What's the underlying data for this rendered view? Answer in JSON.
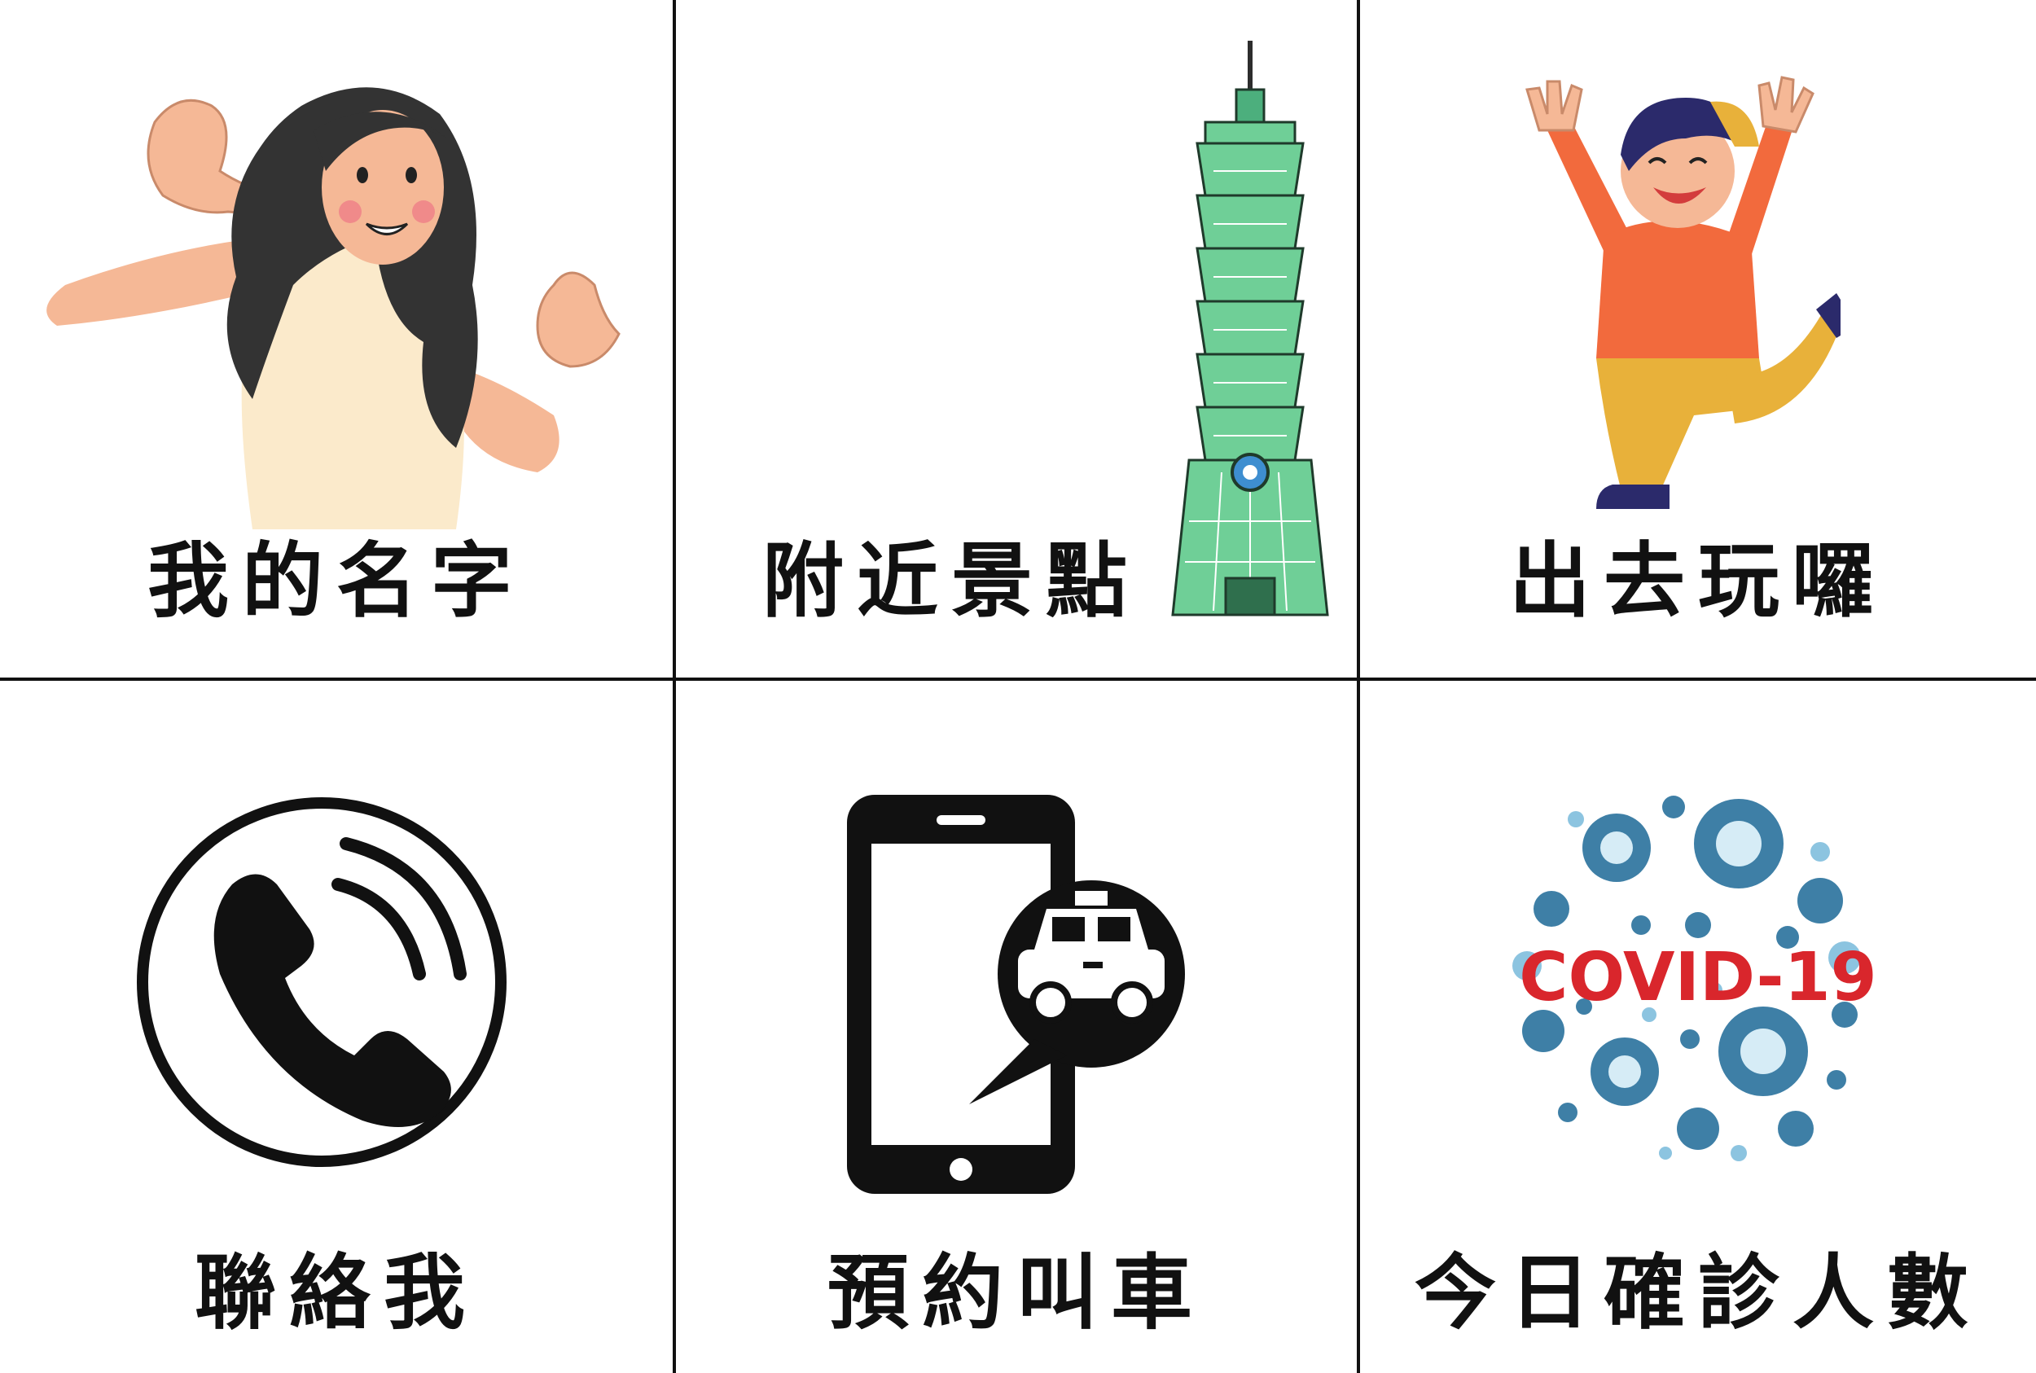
{
  "tiles": [
    {
      "id": "my-name",
      "label": "我的名字",
      "icon": "girl-pointing-at-self-icon"
    },
    {
      "id": "nearby-attractions",
      "label": "附近景點",
      "icon": "taipei-101-tower-icon"
    },
    {
      "id": "go-out-play",
      "label": "出去玩囉",
      "icon": "jumping-boy-icon"
    },
    {
      "id": "contact-me",
      "label": "聯絡我",
      "icon": "phone-call-icon"
    },
    {
      "id": "book-taxi",
      "label": "預約叫車",
      "icon": "taxi-phone-app-icon"
    },
    {
      "id": "covid-cases",
      "label": "今日確診人數",
      "icon": "covid-virus-icon",
      "icon_text": "COVID-19"
    }
  ],
  "colors": {
    "background": "#ffffff",
    "grid_line": "#111111",
    "label_text": "#111111",
    "tower_green": "#4caf7d",
    "shirt_orange": "#f26a3d",
    "pants_yellow": "#e8b13a",
    "covid_red": "#d9262c",
    "virus_blue": "#3e7fa6"
  }
}
